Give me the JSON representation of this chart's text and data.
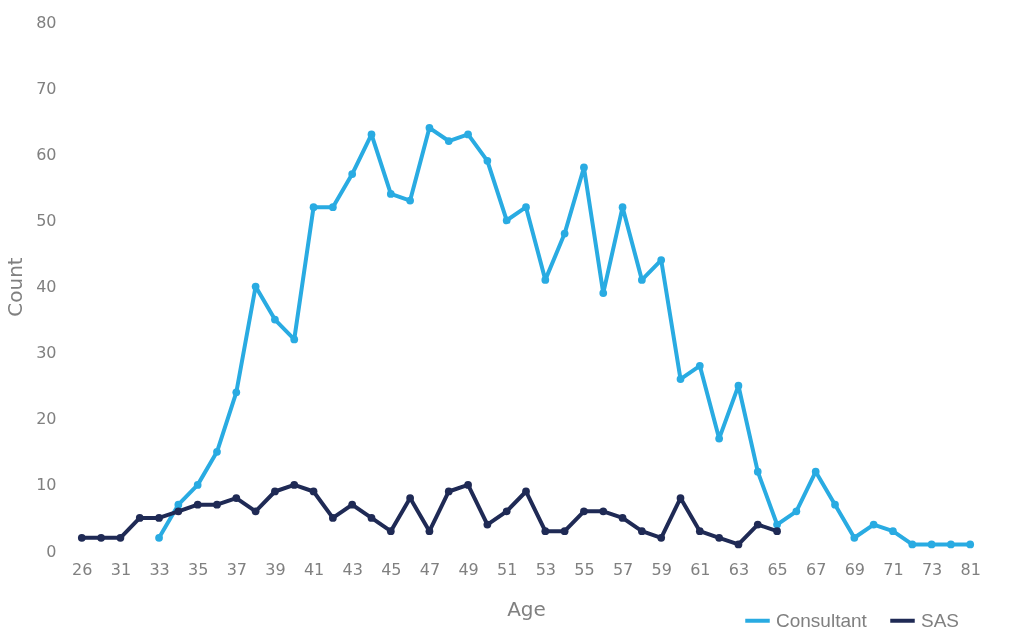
{
  "chart_data": {
    "type": "line",
    "xlabel": "Age",
    "ylabel": "Count",
    "categories": [
      "26",
      null,
      "31",
      null,
      "33",
      null,
      "35",
      null,
      "37",
      null,
      "39",
      null,
      "41",
      null,
      "43",
      null,
      "45",
      null,
      "47",
      null,
      "49",
      null,
      "51",
      null,
      "53",
      null,
      "55",
      null,
      "57",
      null,
      "59",
      null,
      "61",
      null,
      "63",
      null,
      "65",
      null,
      "67",
      null,
      "69",
      null,
      "71",
      null,
      "73",
      null,
      "81"
    ],
    "series": [
      {
        "name": "Consultant",
        "color": "#29abe2",
        "values": [
          null,
          null,
          null,
          null,
          2,
          7,
          10,
          15,
          24,
          40,
          35,
          32,
          52,
          52,
          57,
          63,
          54,
          53,
          64,
          62,
          63,
          59,
          50,
          52,
          41,
          48,
          58,
          39,
          52,
          41,
          44,
          26,
          28,
          17,
          25,
          12,
          4,
          6,
          12,
          7,
          2,
          4,
          3,
          1,
          1,
          1,
          1
        ]
      },
      {
        "name": "SAS",
        "color": "#1f2a55",
        "values": [
          2,
          2,
          2,
          5,
          5,
          6,
          7,
          7,
          8,
          6,
          9,
          10,
          9,
          5,
          7,
          5,
          3,
          8,
          3,
          9,
          10,
          4,
          6,
          9,
          3,
          3,
          6,
          6,
          5,
          3,
          2,
          8,
          3,
          2,
          1,
          4,
          3,
          null,
          null,
          null,
          null,
          null,
          null,
          null,
          null,
          null,
          null
        ]
      }
    ],
    "ylim": [
      0,
      80
    ],
    "yticks": [
      0,
      10,
      20,
      30,
      40,
      50,
      60,
      70,
      80
    ],
    "grid": false,
    "legend": "bottom right",
    "marker": "circle",
    "line_style": "solid"
  }
}
